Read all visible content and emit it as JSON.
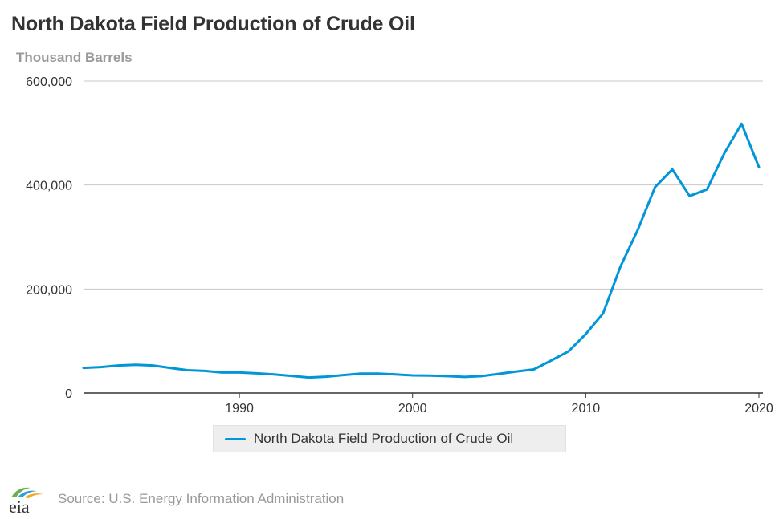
{
  "header": {
    "title": "North Dakota Field Production of Crude Oil",
    "units": "Thousand Barrels"
  },
  "chart_data": {
    "type": "line",
    "title": "North Dakota Field Production of Crude Oil",
    "xlabel": "",
    "ylabel": "Thousand Barrels",
    "xlim": [
      1981,
      2020
    ],
    "ylim": [
      0,
      600000
    ],
    "x_ticks": [
      1990,
      2000,
      2010,
      2020
    ],
    "y_ticks": [
      0,
      200000,
      400000,
      600000
    ],
    "y_tick_labels": [
      "0",
      "200,000",
      "400,000",
      "600,000"
    ],
    "grid": "horizontal",
    "legend_position": "bottom-center",
    "series": [
      {
        "name": "North Dakota Field Production of Crude Oil",
        "color": "#0096d7",
        "x": [
          1981,
          1982,
          1983,
          1984,
          1985,
          1986,
          1987,
          1988,
          1989,
          1990,
          1991,
          1992,
          1993,
          1994,
          1995,
          1996,
          1997,
          1998,
          1999,
          2000,
          2001,
          2002,
          2003,
          2004,
          2005,
          2006,
          2007,
          2008,
          2009,
          2010,
          2011,
          2012,
          2013,
          2014,
          2015,
          2016,
          2017,
          2018,
          2019,
          2020
        ],
        "values": [
          48500,
          50000,
          53000,
          54500,
          53000,
          48500,
          44000,
          42500,
          39500,
          39500,
          38000,
          36000,
          33000,
          30000,
          31500,
          34500,
          37500,
          37500,
          36000,
          34000,
          33500,
          32500,
          31000,
          32500,
          37000,
          41500,
          45500,
          62500,
          80000,
          113500,
          153000,
          243000,
          313500,
          396000,
          430000,
          379000,
          391500,
          461000,
          518000,
          434500
        ]
      }
    ]
  },
  "legend": {
    "label": "North Dakota Field Production of Crude Oil",
    "color": "#0096d7"
  },
  "footer": {
    "logo_text": "eia",
    "source": "Source: U.S. Energy Information Administration"
  }
}
